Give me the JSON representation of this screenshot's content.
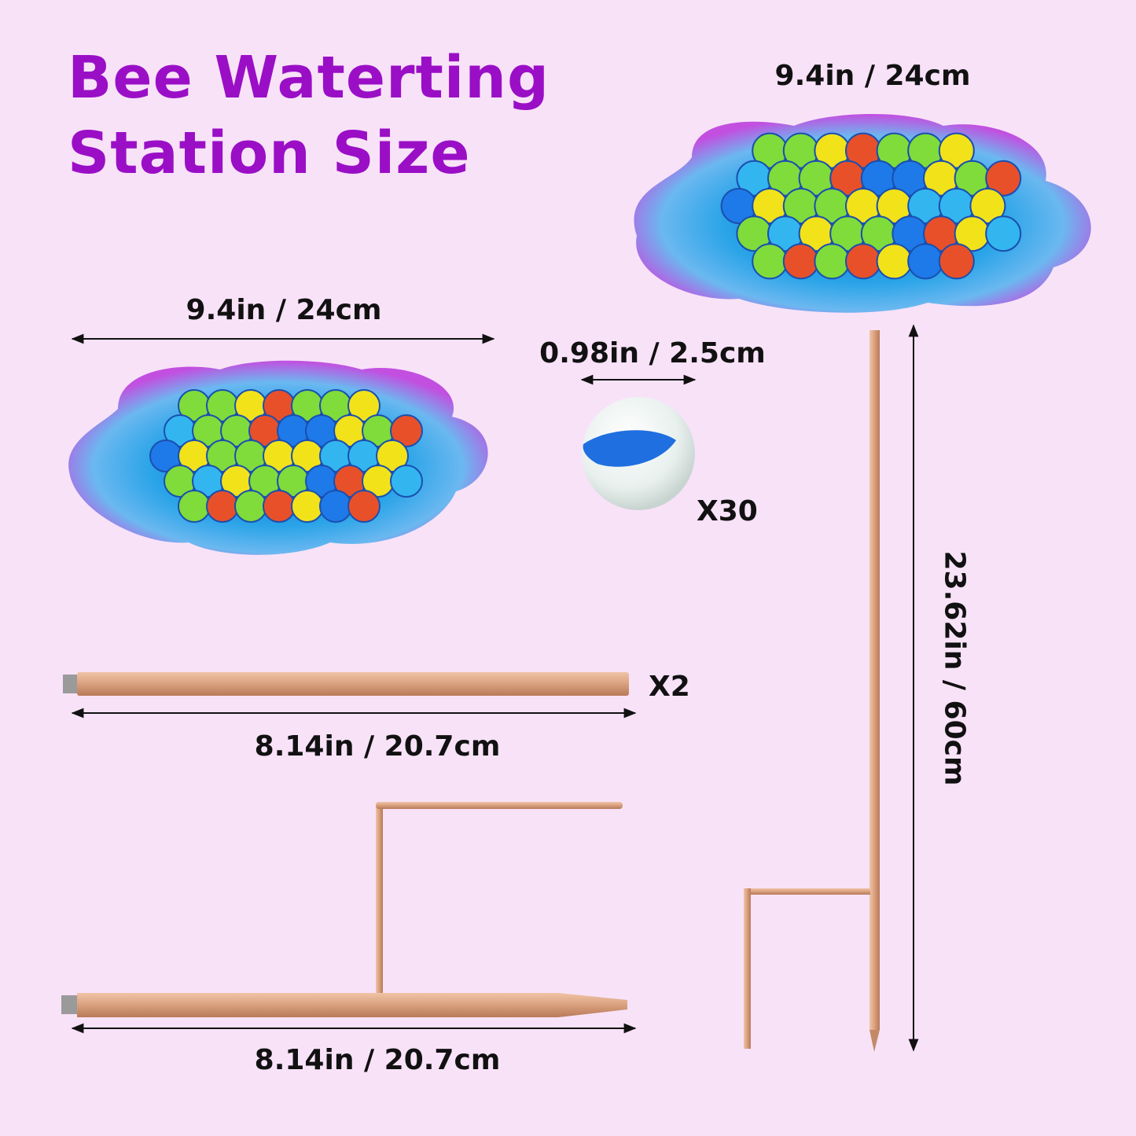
{
  "title": {
    "line1": "Bee Waterting",
    "line2": "Station Size"
  },
  "colors": {
    "background": "#f8e2f8",
    "title": "#9a0fc6",
    "bowl_edge": "#c24fe0",
    "bowl_center": "#2aa4e8",
    "copper": "#d9a07e"
  },
  "dimensions": {
    "assembled_bowl_width": "9.4in / 24cm",
    "bowl_width": "9.4in / 24cm",
    "marble_diameter": "0.98in / 2.5cm",
    "stake_height": "23.62in / 60cm",
    "rod_length": "8.14in / 20.7cm",
    "stake_base_length": "8.14in / 20.7cm"
  },
  "quantities": {
    "marbles": "X30",
    "rods": "X2"
  }
}
